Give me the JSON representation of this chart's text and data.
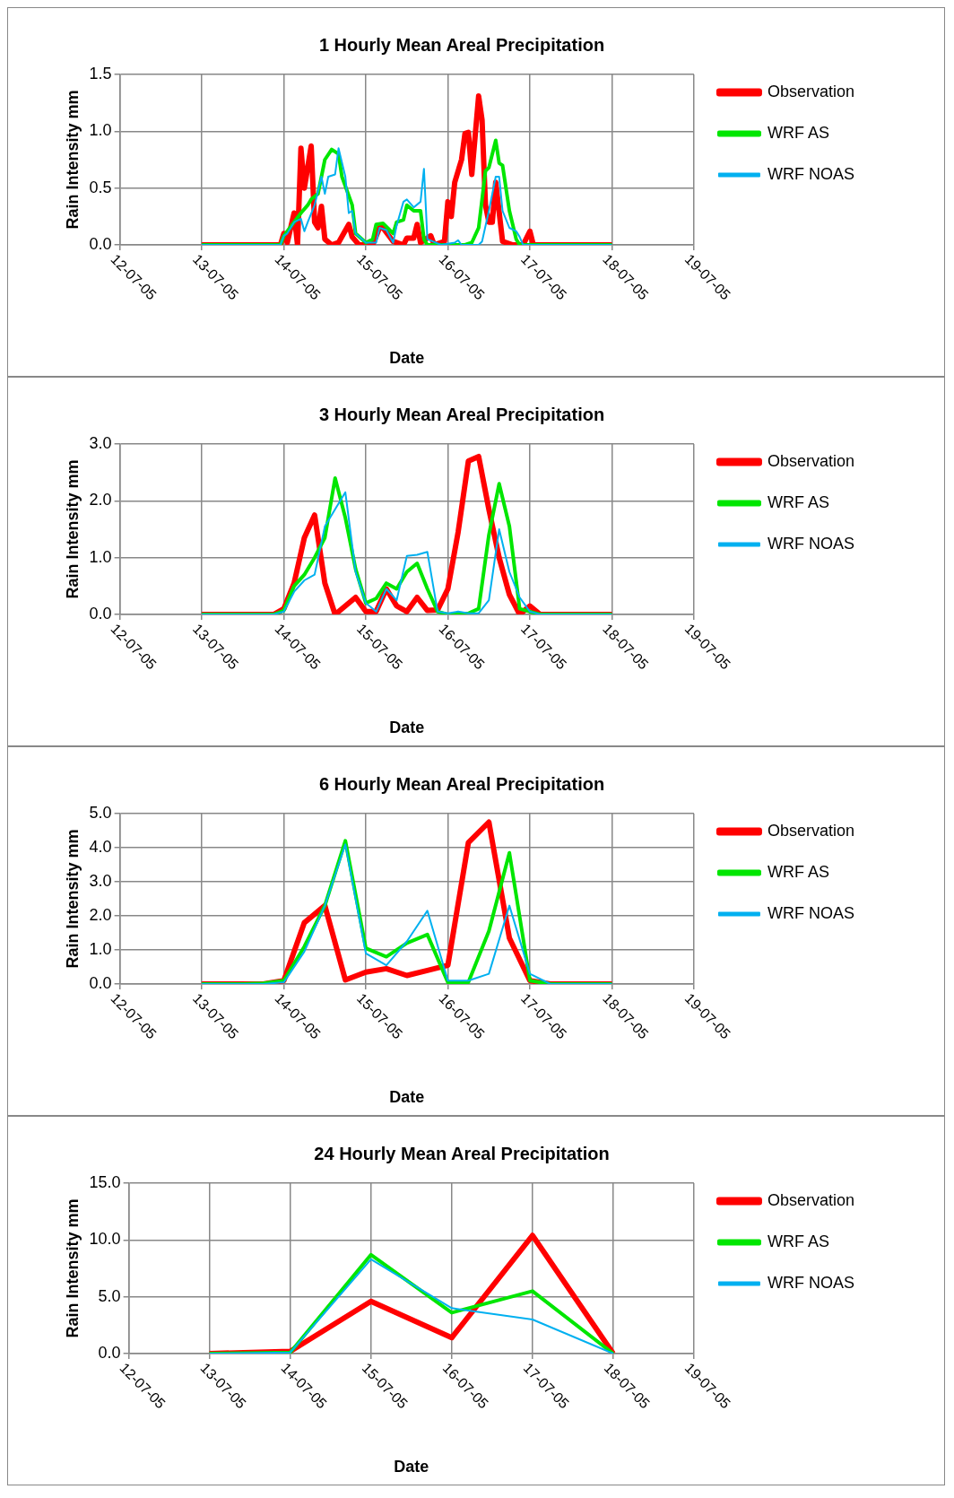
{
  "chart_data": [
    {
      "type": "line",
      "title": "1 Hourly Mean Areal Precipitation",
      "xlabel": "Date",
      "ylabel": "Rain Intensity mm",
      "legend": "right",
      "grid": true,
      "xlim": [
        "--07-12",
        "--07-19"
      ],
      "xticks": [
        {
          "value": "--07-12",
          "label": "12-07-05"
        },
        {
          "value": "--07-13",
          "label": "13-07-05"
        },
        {
          "value": "--07-14",
          "label": "14-07-05"
        },
        {
          "value": "--07-15",
          "label": "15-07-05"
        },
        {
          "value": "--07-16",
          "label": "16-07-05"
        },
        {
          "value": "--07-17",
          "label": "17-07-05"
        },
        {
          "value": "--07-18",
          "label": "18-07-05"
        },
        {
          "value": "--07-19",
          "label": "19-07-05"
        }
      ],
      "ylim": [
        0,
        1.5
      ],
      "yticks": [
        {
          "value": 0,
          "label": "0.0"
        },
        0.5,
        {
          "value": 1,
          "label": "1.0"
        },
        1.5
      ],
      "series": [
        {
          "name": "Observation",
          "color": "#ff0000",
          "x": [
            "--07-13T00:00",
            "--07-13T23:00",
            "--07-14T00:00",
            "--07-14T01:00",
            "--07-14T03:00",
            "--07-14T04:00",
            "--07-14T05:00",
            "--07-14T06:00",
            "--07-14T08:00",
            "--07-14T09:00",
            "--07-14T10:00",
            "--07-14T11:00",
            "--07-14T12:00",
            "--07-14T14:00",
            "--07-14T16:00",
            "--07-14T19:00",
            "--07-14T20:00",
            "--07-14T22:00",
            "--07-15T02:00",
            "--07-15T04:00",
            "--07-15T05:00",
            "--07-15T08:00",
            "--07-15T11:00",
            "--07-15T12:00",
            "--07-15T14:00",
            "--07-15T15:00",
            "--07-15T16:00",
            "--07-15T19:00",
            "--07-15T20:00",
            "--07-15T23:00",
            "--07-16T00:00",
            "--07-16T01:00",
            "--07-16T02:00",
            "--07-16T04:00",
            "--07-16T05:00",
            "--07-16T06:00",
            "--07-16T07:00",
            "--07-16T09:00",
            "--07-16T10:00",
            "--07-16T11:00",
            "--07-16T12:00",
            "--07-16T13:00",
            "--07-16T14:00",
            "--07-16T16:00",
            "--07-16T19:00",
            "--07-16T22:00",
            "--07-17T00:00",
            "--07-17T01:00",
            "--07-18T00:00"
          ],
          "values": [
            0,
            0,
            0.1,
            0.02,
            0.28,
            0,
            0.85,
            0.5,
            0.87,
            0.2,
            0.15,
            0.34,
            0.05,
            0,
            0.02,
            0.18,
            0.07,
            0,
            0,
            0.15,
            0.15,
            0.03,
            0,
            0.06,
            0.06,
            0.18,
            0.02,
            0.08,
            0,
            0.03,
            0.38,
            0.25,
            0.55,
            0.75,
            0.98,
            0.99,
            0.62,
            1.31,
            1.1,
            0.35,
            0.2,
            0.2,
            0.55,
            0.03,
            0,
            0,
            0.12,
            0,
            0
          ]
        },
        {
          "name": "WRF AS",
          "color": "#00e600",
          "x": [
            "--07-13T00:00",
            "--07-13T23:00",
            "--07-14T00:00",
            "--07-14T03:00",
            "--07-14T05:00",
            "--07-14T07:00",
            "--07-14T08:00",
            "--07-14T10:00",
            "--07-14T12:00",
            "--07-14T14:00",
            "--07-14T16:00",
            "--07-14T17:00",
            "--07-14T20:00",
            "--07-14T21:00",
            "--07-15T00:00",
            "--07-15T02:00",
            "--07-15T03:00",
            "--07-15T05:00",
            "--07-15T08:00",
            "--07-15T09:00",
            "--07-15T11:00",
            "--07-15T12:00",
            "--07-15T14:00",
            "--07-15T16:00",
            "--07-15T17:00",
            "--07-15T18:00",
            "--07-16T00:00",
            "--07-16T05:00",
            "--07-16T07:00",
            "--07-16T09:00",
            "--07-16T11:00",
            "--07-16T12:00",
            "--07-16T14:00",
            "--07-16T15:00",
            "--07-16T16:00",
            "--07-16T18:00",
            "--07-16T20:00",
            "--07-16T21:00",
            "--07-18T00:00"
          ],
          "values": [
            0,
            0,
            0.08,
            0.2,
            0.28,
            0.35,
            0.4,
            0.45,
            0.75,
            0.84,
            0.8,
            0.6,
            0.35,
            0.1,
            0.02,
            0.05,
            0.18,
            0.19,
            0.1,
            0.2,
            0.22,
            0.35,
            0.3,
            0.3,
            0.05,
            0,
            0,
            0,
            0.02,
            0.15,
            0.65,
            0.68,
            0.92,
            0.72,
            0.7,
            0.3,
            0.05,
            0,
            0
          ]
        },
        {
          "name": "WRF NOAS",
          "color": "#00b0f0",
          "x": [
            "--07-13T00:00",
            "--07-13T23:00",
            "--07-14T00:00",
            "--07-14T01:00",
            "--07-14T03:00",
            "--07-14T05:00",
            "--07-14T06:00",
            "--07-14T07:00",
            "--07-14T09:00",
            "--07-14T11:00",
            "--07-14T12:00",
            "--07-14T13:00",
            "--07-14T15:00",
            "--07-14T16:00",
            "--07-14T18:00",
            "--07-14T19:00",
            "--07-14T20:00",
            "--07-14T21:00",
            "--07-15T00:00",
            "--07-15T03:00",
            "--07-15T04:00",
            "--07-15T06:00",
            "--07-15T08:00",
            "--07-15T09:00",
            "--07-15T11:00",
            "--07-15T12:00",
            "--07-15T14:00",
            "--07-15T16:00",
            "--07-15T17:00",
            "--07-15T18:00",
            "--07-15T22:00",
            "--07-16T02:00",
            "--07-16T03:00",
            "--07-16T04:00",
            "--07-16T09:00",
            "--07-16T10:00",
            "--07-16T12:00",
            "--07-16T14:00",
            "--07-16T15:00",
            "--07-16T16:00",
            "--07-16T18:00",
            "--07-16T20:00",
            "--07-16T21:00",
            "--07-16T22:00",
            "--07-18T00:00"
          ],
          "values": [
            0,
            0,
            0.08,
            0.1,
            0.2,
            0.23,
            0.12,
            0.2,
            0.35,
            0.6,
            0.45,
            0.6,
            0.62,
            0.85,
            0.6,
            0.28,
            0.3,
            0.1,
            0.02,
            0.02,
            0.15,
            0.13,
            0.02,
            0.17,
            0.38,
            0.4,
            0.33,
            0.38,
            0.67,
            0.05,
            0,
            0.02,
            0.04,
            0,
            0,
            0.03,
            0.3,
            0.6,
            0.6,
            0.3,
            0.15,
            0.12,
            0.07,
            0,
            0
          ]
        }
      ]
    },
    {
      "type": "line",
      "title": "3 Hourly Mean Areal Precipitation",
      "xlabel": "Date",
      "ylabel": "Rain Intensity mm",
      "legend": "right",
      "grid": true,
      "xlim": [
        "--07-12",
        "--07-19"
      ],
      "xticks": [
        {
          "value": "--07-12",
          "label": "12-07-05"
        },
        {
          "value": "--07-13",
          "label": "13-07-05"
        },
        {
          "value": "--07-14",
          "label": "14-07-05"
        },
        {
          "value": "--07-15",
          "label": "15-07-05"
        },
        {
          "value": "--07-16",
          "label": "16-07-05"
        },
        {
          "value": "--07-17",
          "label": "17-07-05"
        },
        {
          "value": "--07-18",
          "label": "18-07-05"
        },
        {
          "value": "--07-19",
          "label": "19-07-05"
        }
      ],
      "ylim": [
        0,
        3
      ],
      "yticks": [
        {
          "value": 0,
          "label": "0.0"
        },
        {
          "value": 1,
          "label": "1.0"
        },
        {
          "value": 2,
          "label": "2.0"
        },
        {
          "value": 3,
          "label": "3.0"
        }
      ],
      "x": [
        "--07-13T00:00",
        "--07-13T03:00",
        "--07-13T06:00",
        "--07-13T09:00",
        "--07-13T12:00",
        "--07-13T15:00",
        "--07-13T18:00",
        "--07-13T21:00",
        "--07-14T00:00",
        "--07-14T03:00",
        "--07-14T06:00",
        "--07-14T09:00",
        "--07-14T12:00",
        "--07-14T15:00",
        "--07-14T18:00",
        "--07-14T21:00",
        "--07-15T00:00",
        "--07-15T03:00",
        "--07-15T06:00",
        "--07-15T09:00",
        "--07-15T12:00",
        "--07-15T15:00",
        "--07-15T18:00",
        "--07-15T21:00",
        "--07-16T00:00",
        "--07-16T03:00",
        "--07-16T06:00",
        "--07-16T09:00",
        "--07-16T12:00",
        "--07-16T15:00",
        "--07-16T18:00",
        "--07-16T21:00",
        "--07-17T00:00",
        "--07-17T03:00",
        "--07-17T06:00",
        "--07-17T09:00",
        "--07-17T12:00",
        "--07-17T15:00",
        "--07-17T18:00",
        "--07-17T21:00",
        "--07-18T00:00"
      ],
      "series": [
        {
          "name": "Observation",
          "color": "#ff0000",
          "values": [
            0,
            0,
            0,
            0,
            0,
            0,
            0,
            0,
            0.1,
            0.55,
            1.35,
            1.75,
            0.55,
            0,
            0.15,
            0.3,
            0.05,
            0.05,
            0.45,
            0.15,
            0.05,
            0.3,
            0.07,
            0.08,
            0.45,
            1.45,
            2.7,
            2.78,
            1.85,
            1.0,
            0.35,
            0,
            0.15,
            0,
            0,
            0,
            0,
            0,
            0,
            0,
            0
          ]
        },
        {
          "name": "WRF AS",
          "color": "#00e600",
          "values": [
            0,
            0,
            0,
            0,
            0,
            0,
            0,
            0,
            0.07,
            0.5,
            0.7,
            1.0,
            1.35,
            2.4,
            1.7,
            0.8,
            0.2,
            0.28,
            0.55,
            0.45,
            0.75,
            0.9,
            0.45,
            0.05,
            0,
            0,
            0.02,
            0.1,
            1.4,
            2.3,
            1.55,
            0.1,
            0.05,
            0,
            0,
            0,
            0,
            0,
            0,
            0,
            0
          ]
        },
        {
          "name": "WRF NOAS",
          "color": "#00b0f0",
          "values": [
            0,
            0,
            0,
            0,
            0,
            0,
            0,
            0,
            0.05,
            0.4,
            0.6,
            0.7,
            1.55,
            1.85,
            2.15,
            0.75,
            0.2,
            0.05,
            0.45,
            0.25,
            1.03,
            1.05,
            1.1,
            0.05,
            0.02,
            0.05,
            0.02,
            0.02,
            0.25,
            1.5,
            0.75,
            0.3,
            0.05,
            0,
            0,
            0,
            0,
            0,
            0,
            0,
            0
          ]
        }
      ]
    },
    {
      "type": "line",
      "title": "6 Hourly Mean Areal Precipitation",
      "xlabel": "Date",
      "ylabel": "Rain Intensity mm",
      "legend": "right",
      "grid": true,
      "xlim": [
        "--07-12",
        "--07-19"
      ],
      "xticks": [
        {
          "value": "--07-12",
          "label": "12-07-05"
        },
        {
          "value": "--07-13",
          "label": "13-07-05"
        },
        {
          "value": "--07-14",
          "label": "14-07-05"
        },
        {
          "value": "--07-15",
          "label": "15-07-05"
        },
        {
          "value": "--07-16",
          "label": "16-07-05"
        },
        {
          "value": "--07-17",
          "label": "17-07-05"
        },
        {
          "value": "--07-18",
          "label": "18-07-05"
        },
        {
          "value": "--07-19",
          "label": "19-07-05"
        }
      ],
      "ylim": [
        0,
        5
      ],
      "yticks": [
        {
          "value": 0,
          "label": "0.0"
        },
        {
          "value": 1,
          "label": "1.0"
        },
        {
          "value": 2,
          "label": "2.0"
        },
        {
          "value": 3,
          "label": "3.0"
        },
        {
          "value": 4,
          "label": "4.0"
        },
        {
          "value": 5,
          "label": "5.0"
        }
      ],
      "x": [
        "--07-13T00:00",
        "--07-13T06:00",
        "--07-13T12:00",
        "--07-13T18:00",
        "--07-14T00:00",
        "--07-14T06:00",
        "--07-14T12:00",
        "--07-14T18:00",
        "--07-15T00:00",
        "--07-15T06:00",
        "--07-15T12:00",
        "--07-15T18:00",
        "--07-16T00:00",
        "--07-16T06:00",
        "--07-16T12:00",
        "--07-16T18:00",
        "--07-17T00:00",
        "--07-17T06:00",
        "--07-17T12:00",
        "--07-17T18:00",
        "--07-18T00:00"
      ],
      "series": [
        {
          "name": "Observation",
          "color": "#ff0000",
          "values": [
            0,
            0,
            0,
            0,
            0.1,
            1.8,
            2.3,
            0.12,
            0.35,
            0.45,
            0.25,
            0.4,
            0.55,
            4.15,
            4.75,
            1.35,
            0.1,
            0,
            0,
            0,
            0
          ]
        },
        {
          "name": "WRF AS",
          "color": "#00e600",
          "values": [
            0,
            0,
            0,
            0.02,
            0.1,
            1.1,
            2.3,
            4.2,
            1.05,
            0.8,
            1.2,
            1.45,
            0.05,
            0.05,
            1.55,
            3.85,
            0.1,
            0,
            0,
            0,
            0
          ]
        },
        {
          "name": "WRF NOAS",
          "color": "#00b0f0",
          "values": [
            0,
            0,
            0,
            0,
            0.05,
            0.95,
            2.3,
            4.1,
            0.9,
            0.55,
            1.25,
            2.15,
            0.1,
            0.1,
            0.3,
            2.3,
            0.3,
            0,
            0,
            0,
            0
          ]
        }
      ]
    },
    {
      "type": "line",
      "title": "24 Hourly Mean Areal Precipitation",
      "xlabel": "Date",
      "ylabel": "Rain Intensity mm",
      "legend": "right",
      "grid": true,
      "xlim": [
        "--07-12",
        "--07-19"
      ],
      "xticks": [
        {
          "value": "--07-12",
          "label": "12-07-05"
        },
        {
          "value": "--07-13",
          "label": "13-07-05"
        },
        {
          "value": "--07-14",
          "label": "14-07-05"
        },
        {
          "value": "--07-15",
          "label": "15-07-05"
        },
        {
          "value": "--07-16",
          "label": "16-07-05"
        },
        {
          "value": "--07-17",
          "label": "17-07-05"
        },
        {
          "value": "--07-18",
          "label": "18-07-05"
        },
        {
          "value": "--07-19",
          "label": "19-07-05"
        }
      ],
      "ylim": [
        0,
        15
      ],
      "yticks": [
        {
          "value": 0,
          "label": "0.0"
        },
        {
          "value": 5,
          "label": "5.0"
        },
        {
          "value": 10,
          "label": "10.0"
        },
        {
          "value": 15,
          "label": "15.0"
        }
      ],
      "x": [
        "--07-13",
        "--07-14",
        "--07-15",
        "--07-16",
        "--07-17",
        "--07-18"
      ],
      "series": [
        {
          "name": "Observation",
          "color": "#ff0000",
          "values": [
            0,
            0.2,
            4.6,
            1.4,
            10.4,
            0
          ]
        },
        {
          "name": "WRF AS",
          "color": "#00e600",
          "values": [
            0,
            0.1,
            8.7,
            3.6,
            5.5,
            0
          ]
        },
        {
          "name": "WRF NOAS",
          "color": "#00b0f0",
          "values": [
            0,
            0.1,
            8.3,
            4.0,
            3.0,
            0
          ]
        }
      ]
    }
  ]
}
